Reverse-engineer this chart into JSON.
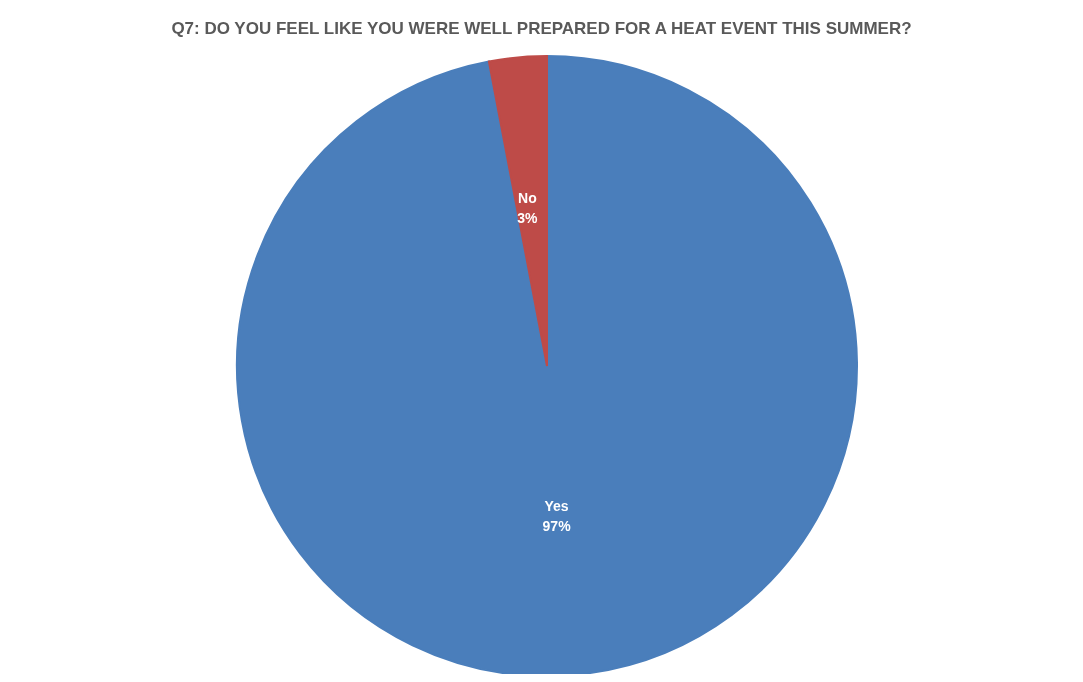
{
  "chart_data": {
    "type": "pie",
    "title": "Q7: DO YOU FEEL LIKE YOU WERE WELL PREPARED FOR A HEAT EVENT THIS SUMMER?",
    "categories": [
      "Yes",
      "No"
    ],
    "values": [
      97,
      3
    ],
    "colors": [
      "#4a7ebb",
      "#be4b48"
    ],
    "value_labels": [
      "97%",
      "3%"
    ],
    "legend": false
  }
}
